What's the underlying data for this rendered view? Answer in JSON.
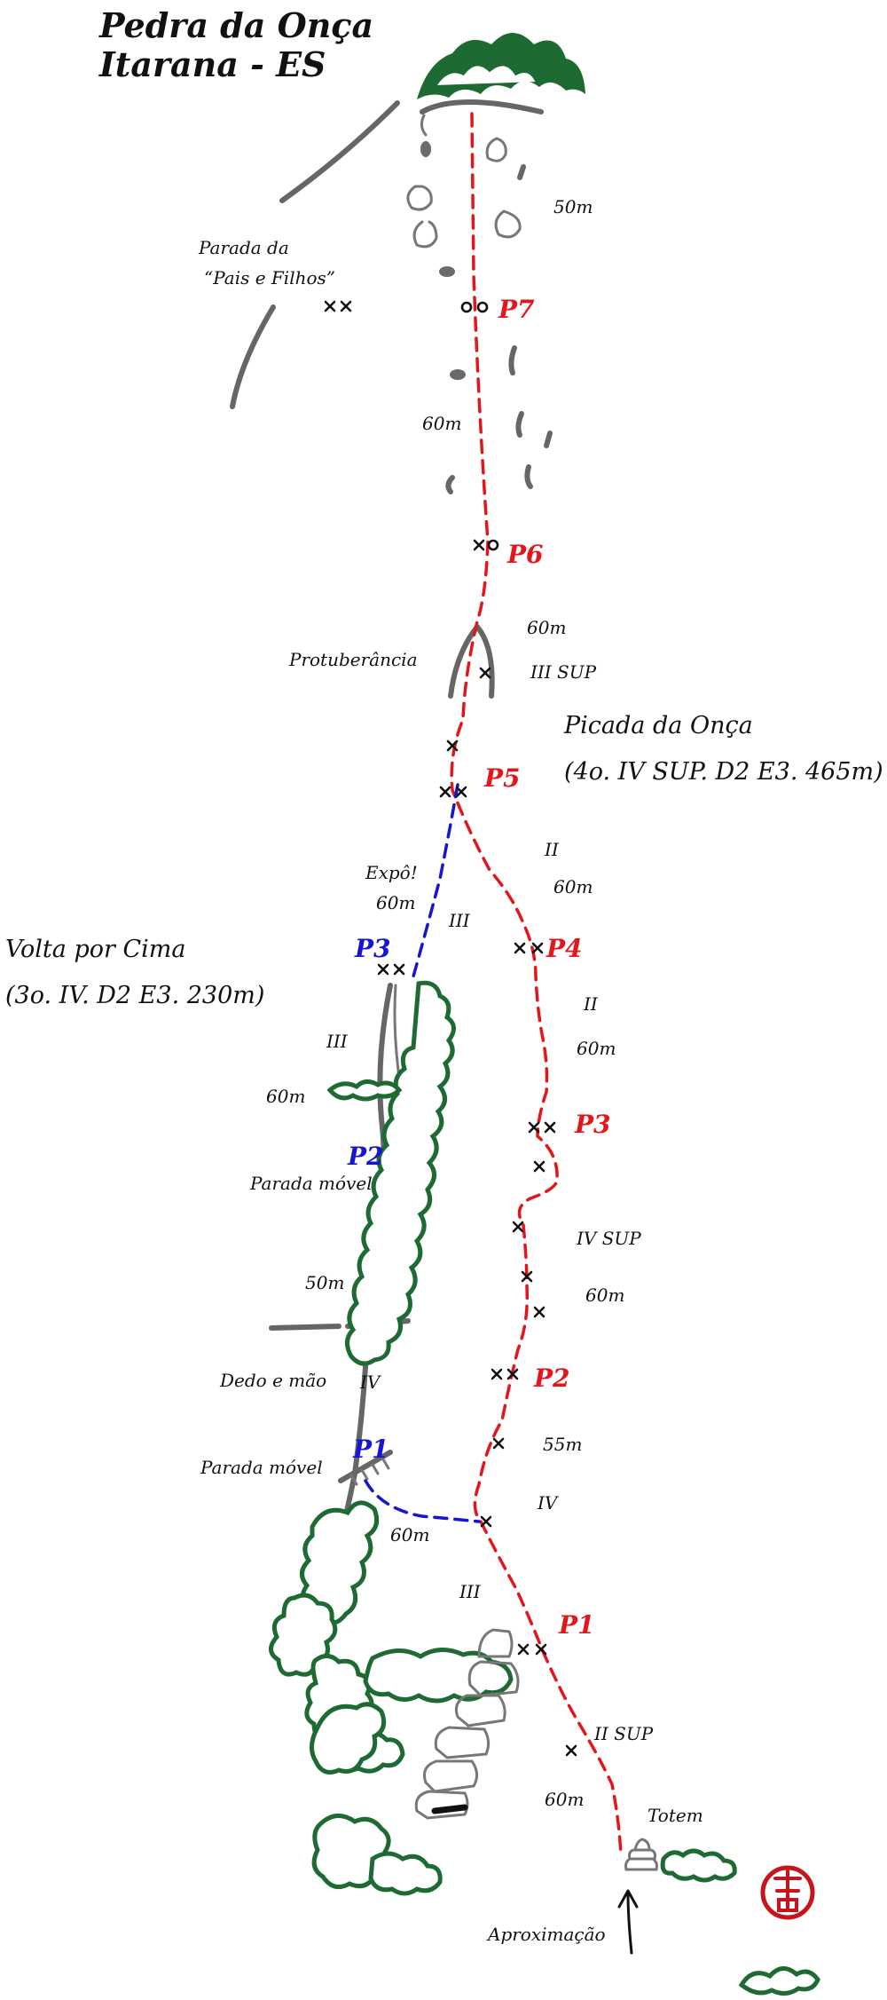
{
  "title": {
    "line1": "Pedra da Onça",
    "line2": "Itarana - ES"
  },
  "routes": {
    "picada": {
      "name": "Picada da Onça",
      "details": "(4o. IV SUP. D2 E3. 465m)",
      "color": "#e3171b",
      "belays": [
        "P1",
        "P2",
        "P3",
        "P4",
        "P5",
        "P6",
        "P7"
      ]
    },
    "volta": {
      "name": "Volta por Cima",
      "details": "(3o. IV. D2 E3. 230m)",
      "color": "#1515d2",
      "belays": [
        "P1",
        "P2",
        "P3"
      ]
    }
  },
  "pitch_labels": {
    "p7_len": "50m",
    "p6_len": "60m",
    "p5_len": "60m",
    "p5_grade": "III SUP",
    "p4_grade": "II",
    "p4_len": "60m",
    "p3_grade": "II",
    "p3_len": "60m",
    "p2_grade": "IV SUP",
    "p2_len": "60m",
    "p1b_len": "55m",
    "p1b_grade": "IV",
    "p1a_grade": "III",
    "p0_grade": "II SUP",
    "p0_len": "60m",
    "b1_len": "60m",
    "b2_grade": "IV",
    "b2_len": "50m",
    "b3_grade": "III",
    "b3_len": "60m",
    "b4_grade": "III",
    "b4_len": "60m"
  },
  "annotations": {
    "pais_line1": "Parada da",
    "pais_line2": "“Pais e Filhos”",
    "protuberancia": "Protuberância",
    "expo": "Expô!",
    "parada_movel_2": "Parada móvel",
    "parada_movel_1": "Parada móvel",
    "dedo_mao": "Dedo e mão",
    "totem": "Totem",
    "approach": "Aproximação"
  }
}
